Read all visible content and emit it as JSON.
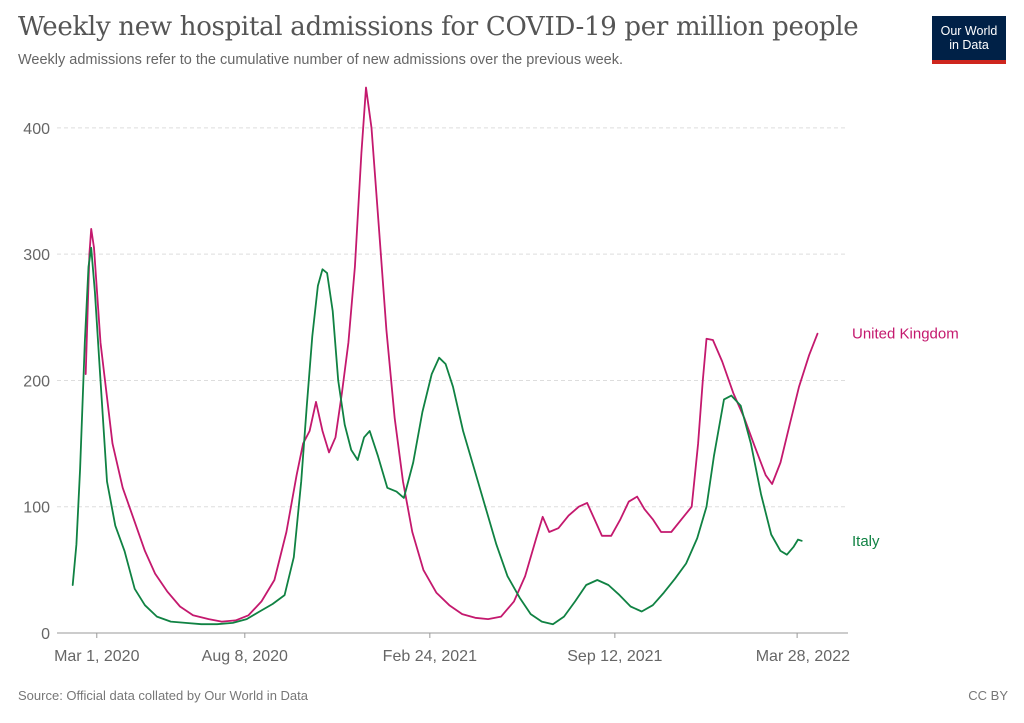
{
  "title": "Weekly new hospital admissions for COVID-19 per million people",
  "subtitle": "Weekly admissions refer to the cumulative number of new admissions over the previous week.",
  "logo": {
    "line1": "Our World",
    "line2": "in Data"
  },
  "source": "Source: Official data collated by Our World in Data",
  "license": "CC BY",
  "colors": {
    "uk": "#c4196e",
    "italy": "#108243",
    "grid": "#dddddd",
    "axis": "#999999"
  },
  "chart_data": {
    "type": "line",
    "title": "Weekly new hospital admissions for COVID-19 per million people",
    "xlabel": "",
    "ylabel": "",
    "xlim": [
      "2020-01-18",
      "2022-05-22"
    ],
    "ylim": [
      0,
      430
    ],
    "grid": "horizontal dashed",
    "y_ticks": [
      "0",
      "100",
      "200",
      "300",
      "400"
    ],
    "x_ticks": [
      {
        "date": "2020-03-01",
        "label": "Mar 1, 2020"
      },
      {
        "date": "2020-08-08",
        "label": "Aug 8, 2020"
      },
      {
        "date": "2021-02-24",
        "label": "Feb 24, 2021"
      },
      {
        "date": "2021-09-12",
        "label": "Sep 12, 2021"
      },
      {
        "date": "2022-03-28",
        "label": "Mar 28, 2022"
      }
    ],
    "series": [
      {
        "name": "United Kingdom",
        "color": "#c4196e",
        "points": [
          [
            "2020-02-18",
            205
          ],
          [
            "2020-02-22",
            300
          ],
          [
            "2020-02-24",
            320
          ],
          [
            "2020-02-27",
            305
          ],
          [
            "2020-03-05",
            230
          ],
          [
            "2020-03-18",
            150
          ],
          [
            "2020-03-29",
            115
          ],
          [
            "2020-04-10",
            90
          ],
          [
            "2020-04-22",
            65
          ],
          [
            "2020-05-03",
            47
          ],
          [
            "2020-05-16",
            33
          ],
          [
            "2020-05-30",
            21
          ],
          [
            "2020-06-13",
            14
          ],
          [
            "2020-06-30",
            11
          ],
          [
            "2020-07-14",
            9
          ],
          [
            "2020-07-29",
            10
          ],
          [
            "2020-08-12",
            14
          ],
          [
            "2020-08-26",
            25
          ],
          [
            "2020-09-09",
            42
          ],
          [
            "2020-09-22",
            80
          ],
          [
            "2020-10-03",
            125
          ],
          [
            "2020-10-10",
            150
          ],
          [
            "2020-10-17",
            160
          ],
          [
            "2020-10-24",
            183
          ],
          [
            "2020-10-31",
            160
          ],
          [
            "2020-11-07",
            143
          ],
          [
            "2020-11-14",
            155
          ],
          [
            "2020-11-21",
            190
          ],
          [
            "2020-11-28",
            230
          ],
          [
            "2020-12-05",
            290
          ],
          [
            "2020-12-12",
            380
          ],
          [
            "2020-12-17",
            432
          ],
          [
            "2020-12-23",
            400
          ],
          [
            "2020-12-31",
            320
          ],
          [
            "2021-01-08",
            240
          ],
          [
            "2021-01-17",
            170
          ],
          [
            "2021-01-26",
            120
          ],
          [
            "2021-02-05",
            80
          ],
          [
            "2021-02-17",
            50
          ],
          [
            "2021-03-03",
            32
          ],
          [
            "2021-03-17",
            22
          ],
          [
            "2021-03-31",
            15
          ],
          [
            "2021-04-14",
            12
          ],
          [
            "2021-04-28",
            11
          ],
          [
            "2021-05-12",
            13
          ],
          [
            "2021-05-26",
            25
          ],
          [
            "2021-06-07",
            45
          ],
          [
            "2021-06-19",
            75
          ],
          [
            "2021-06-26",
            92
          ],
          [
            "2021-07-03",
            80
          ],
          [
            "2021-07-13",
            83
          ],
          [
            "2021-07-24",
            93
          ],
          [
            "2021-08-04",
            100
          ],
          [
            "2021-08-13",
            103
          ],
          [
            "2021-08-21",
            90
          ],
          [
            "2021-08-29",
            77
          ],
          [
            "2021-09-08",
            77
          ],
          [
            "2021-09-18",
            90
          ],
          [
            "2021-09-27",
            104
          ],
          [
            "2021-10-06",
            108
          ],
          [
            "2021-10-14",
            98
          ],
          [
            "2021-10-23",
            90
          ],
          [
            "2021-11-01",
            80
          ],
          [
            "2021-11-12",
            80
          ],
          [
            "2021-11-23",
            90
          ],
          [
            "2021-12-04",
            100
          ],
          [
            "2021-12-11",
            150
          ],
          [
            "2021-12-16",
            200
          ],
          [
            "2021-12-20",
            233
          ],
          [
            "2021-12-27",
            232
          ],
          [
            "2022-01-06",
            215
          ],
          [
            "2022-01-18",
            190
          ],
          [
            "2022-01-30",
            170
          ],
          [
            "2022-02-10",
            148
          ],
          [
            "2022-02-22",
            125
          ],
          [
            "2022-03-01",
            118
          ],
          [
            "2022-03-10",
            135
          ],
          [
            "2022-03-20",
            165
          ],
          [
            "2022-03-30",
            195
          ],
          [
            "2022-04-10",
            220
          ],
          [
            "2022-04-19",
            237
          ]
        ]
      },
      {
        "name": "Italy",
        "color": "#108243",
        "points": [
          [
            "2020-02-04",
            38
          ],
          [
            "2020-02-08",
            70
          ],
          [
            "2020-02-12",
            130
          ],
          [
            "2020-02-17",
            230
          ],
          [
            "2020-02-21",
            290
          ],
          [
            "2020-02-24",
            305
          ],
          [
            "2020-02-28",
            270
          ],
          [
            "2020-03-05",
            200
          ],
          [
            "2020-03-12",
            120
          ],
          [
            "2020-03-21",
            85
          ],
          [
            "2020-03-31",
            65
          ],
          [
            "2020-04-11",
            35
          ],
          [
            "2020-04-22",
            22
          ],
          [
            "2020-05-05",
            13
          ],
          [
            "2020-05-20",
            9
          ],
          [
            "2020-06-05",
            8
          ],
          [
            "2020-06-22",
            7
          ],
          [
            "2020-07-09",
            7
          ],
          [
            "2020-07-26",
            8
          ],
          [
            "2020-08-10",
            11
          ],
          [
            "2020-08-24",
            17
          ],
          [
            "2020-09-07",
            23
          ],
          [
            "2020-09-20",
            30
          ],
          [
            "2020-09-30",
            60
          ],
          [
            "2020-10-08",
            120
          ],
          [
            "2020-10-14",
            180
          ],
          [
            "2020-10-20",
            235
          ],
          [
            "2020-10-26",
            275
          ],
          [
            "2020-10-31",
            288
          ],
          [
            "2020-11-05",
            285
          ],
          [
            "2020-11-11",
            255
          ],
          [
            "2020-11-17",
            200
          ],
          [
            "2020-11-24",
            165
          ],
          [
            "2020-12-01",
            145
          ],
          [
            "2020-12-08",
            137
          ],
          [
            "2020-12-15",
            155
          ],
          [
            "2020-12-21",
            160
          ],
          [
            "2020-12-30",
            140
          ],
          [
            "2021-01-09",
            115
          ],
          [
            "2021-01-19",
            112
          ],
          [
            "2021-01-27",
            107
          ],
          [
            "2021-02-06",
            135
          ],
          [
            "2021-02-16",
            175
          ],
          [
            "2021-02-26",
            205
          ],
          [
            "2021-03-06",
            218
          ],
          [
            "2021-03-13",
            213
          ],
          [
            "2021-03-21",
            195
          ],
          [
            "2021-04-01",
            160
          ],
          [
            "2021-04-13",
            130
          ],
          [
            "2021-04-25",
            100
          ],
          [
            "2021-05-07",
            70
          ],
          [
            "2021-05-19",
            45
          ],
          [
            "2021-06-01",
            28
          ],
          [
            "2021-06-13",
            15
          ],
          [
            "2021-06-25",
            9
          ],
          [
            "2021-07-07",
            7
          ],
          [
            "2021-07-19",
            13
          ],
          [
            "2021-07-31",
            25
          ],
          [
            "2021-08-12",
            38
          ],
          [
            "2021-08-24",
            42
          ],
          [
            "2021-09-05",
            38
          ],
          [
            "2021-09-17",
            30
          ],
          [
            "2021-09-29",
            21
          ],
          [
            "2021-10-11",
            17
          ],
          [
            "2021-10-23",
            22
          ],
          [
            "2021-11-04",
            32
          ],
          [
            "2021-11-16",
            43
          ],
          [
            "2021-11-28",
            55
          ],
          [
            "2021-12-10",
            75
          ],
          [
            "2021-12-20",
            100
          ],
          [
            "2021-12-28",
            140
          ],
          [
            "2022-01-08",
            185
          ],
          [
            "2022-01-16",
            188
          ],
          [
            "2022-01-26",
            180
          ],
          [
            "2022-02-06",
            150
          ],
          [
            "2022-02-17",
            110
          ],
          [
            "2022-02-28",
            78
          ],
          [
            "2022-03-10",
            65
          ],
          [
            "2022-03-17",
            62
          ],
          [
            "2022-03-24",
            68
          ],
          [
            "2022-03-29",
            74
          ],
          [
            "2022-04-02",
            73
          ]
        ]
      }
    ]
  }
}
